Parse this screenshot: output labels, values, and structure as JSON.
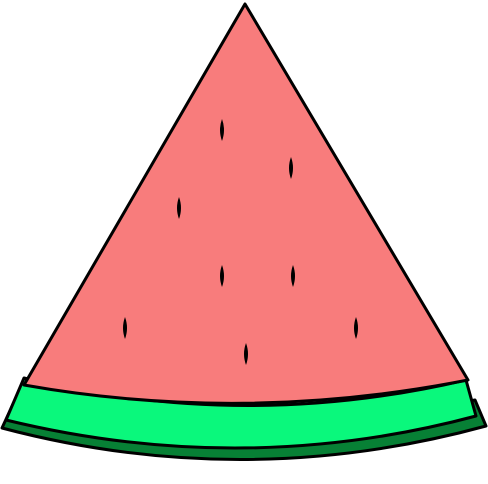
{
  "illustration": {
    "subject": "watermelon-slice",
    "seed_count": 8
  },
  "colors": {
    "flesh": "#F87C7C",
    "rind_light": "#0AF87C",
    "rind_dark": "#078035",
    "seed": "#000000",
    "outline": "#000000",
    "background": "#FFFFFF"
  }
}
